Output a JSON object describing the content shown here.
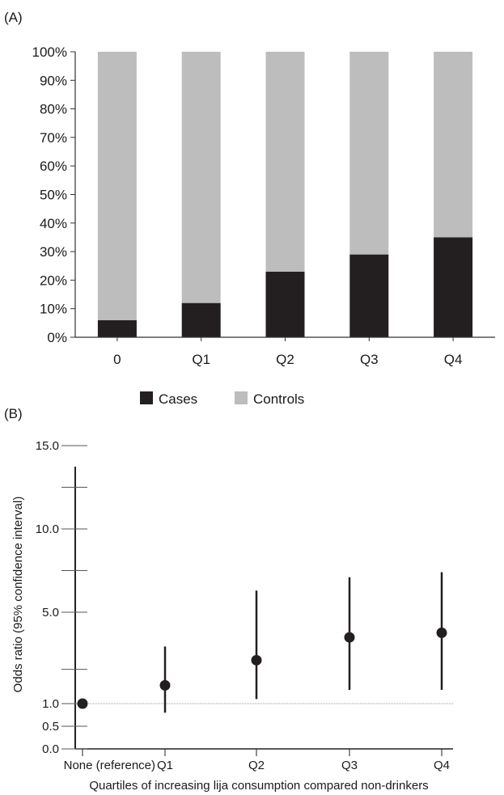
{
  "chart_data": [
    {
      "panel_label": "(A)",
      "type": "bar",
      "stacked": true,
      "categories": [
        "0",
        "Q1",
        "Q2",
        "Q3",
        "Q4"
      ],
      "series": [
        {
          "name": "Cases",
          "values": [
            6,
            12,
            23,
            29,
            35
          ],
          "color": "#231f20"
        },
        {
          "name": "Controls",
          "values": [
            94,
            88,
            77,
            71,
            65
          ],
          "color": "#bdbdbd"
        }
      ],
      "ylim": [
        0,
        100
      ],
      "yticks": [
        0,
        10,
        20,
        30,
        40,
        50,
        60,
        70,
        80,
        90,
        100
      ],
      "ytick_labels": [
        "0%",
        "10%",
        "20%",
        "30%",
        "40%",
        "50%",
        "60%",
        "70%",
        "80%",
        "90%",
        "100%"
      ],
      "legend_position": "bottom",
      "grid": false
    },
    {
      "panel_label": "(B)",
      "type": "scatter",
      "error_bars": true,
      "categories": [
        "None (reference)",
        "Q1",
        "Q2",
        "Q3",
        "Q4"
      ],
      "points": [
        {
          "x": "None (reference)",
          "y": 1.0,
          "lower": null,
          "upper": null
        },
        {
          "x": "Q1",
          "y": 1.8,
          "lower": 0.8,
          "upper": 3.5
        },
        {
          "x": "Q2",
          "y": 2.9,
          "lower": 1.2,
          "upper": 6.3
        },
        {
          "x": "Q3",
          "y": 3.9,
          "lower": 1.6,
          "upper": 7.1
        },
        {
          "x": "Q4",
          "y": 4.1,
          "lower": 1.6,
          "upper": 7.4
        }
      ],
      "ylabel": "Odds ratio (95% confidence interval)",
      "xlabel": "Quartiles of increasing lija consumption compared non-drinkers",
      "yticks_labeled": [
        0.0,
        0.5,
        1.0,
        5.0,
        10.0,
        15.0
      ],
      "ytick_labels": [
        "0.0",
        "0.5",
        "1.0",
        "5.0",
        "10.0",
        "15.0"
      ],
      "yticks_minor": [
        2.5,
        7.5,
        12.5
      ],
      "reference_line": 1.0,
      "point_color": "#231f20",
      "grid": false
    }
  ]
}
